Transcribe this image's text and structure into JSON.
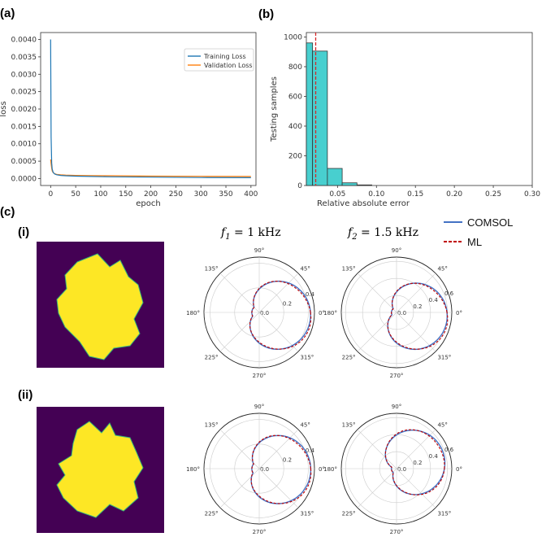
{
  "panel_labels": {
    "a": "(a)",
    "b": "(b)",
    "c": "(c)",
    "i": "(i)",
    "ii": "(ii)"
  },
  "freq_labels": {
    "f1": {
      "sym": "f",
      "sub": "1",
      "rest": " = 1 kHz"
    },
    "f2": {
      "sym": "f",
      "sub": "2",
      "rest": " = 1.5 kHz"
    }
  },
  "polar_legend": {
    "comsol": "COMSOL",
    "ml": "ML"
  },
  "colors": {
    "training": "#1f77b4",
    "validation": "#ff7f0e",
    "hist_fill": "#48cfcf",
    "hist_edge": "#333333",
    "mean_line": "#d62728",
    "comsol": "#4472c4",
    "ml": "#c00000",
    "shape_bg": "#440154",
    "shape_fg": "#fde725"
  },
  "chart_data": [
    {
      "type": "line",
      "xlabel": "epoch",
      "ylabel": "loss",
      "xlim": [
        -20,
        410
      ],
      "ylim": [
        -0.0002,
        0.0042
      ],
      "xticks": [
        "0",
        "50",
        "100",
        "150",
        "200",
        "250",
        "300",
        "350",
        "400"
      ],
      "yticks": [
        "0.0000",
        "0.0005",
        "0.0010",
        "0.0015",
        "0.0020",
        "0.0025",
        "0.0030",
        "0.0035",
        "0.0040"
      ],
      "legend": "top-right",
      "series": [
        {
          "name": "Training Loss",
          "x": [
            0,
            1,
            2,
            3,
            5,
            8,
            12,
            20,
            30,
            50,
            80,
            120,
            200,
            300,
            400
          ],
          "y": [
            0.004,
            0.0012,
            0.00045,
            0.00028,
            0.00018,
            0.00013,
            0.00011,
            9e-05,
            8e-05,
            7e-05,
            6e-05,
            5e-05,
            4e-05,
            3e-05,
            2.5e-05
          ]
        },
        {
          "name": "Validation Loss",
          "x": [
            0,
            1,
            2,
            3,
            5,
            8,
            12,
            20,
            30,
            50,
            80,
            120,
            200,
            300,
            400
          ],
          "y": [
            0.00055,
            0.00042,
            0.0003,
            0.00022,
            0.00017,
            0.00014,
            0.00012,
            0.00011,
            0.0001,
            9e-05,
            8.5e-05,
            8e-05,
            7e-05,
            6.5e-05,
            6e-05
          ]
        }
      ]
    },
    {
      "type": "bar",
      "xlabel": "Relative absolute error",
      "ylabel": "Testing samples",
      "xlim": [
        0.01,
        0.3
      ],
      "ylim": [
        0,
        1030
      ],
      "xticks": [
        "0.05",
        "0.10",
        "0.15",
        "0.20",
        "0.25",
        "0.30"
      ],
      "yticks": [
        "0",
        "200",
        "400",
        "600",
        "800",
        "1000"
      ],
      "bin_edges": [
        0.01,
        0.018,
        0.037,
        0.056,
        0.075,
        0.094
      ],
      "values": [
        960,
        905,
        115,
        18,
        4
      ],
      "mean_line_x": 0.022
    },
    {
      "type": "polar",
      "angle_labels": [
        "0°",
        "45°",
        "90°",
        "135°",
        "180°",
        "225°",
        "270°",
        "315°"
      ],
      "radial_ticks": [
        "0.0",
        "0.2",
        "0.4"
      ],
      "rmax": 0.45,
      "series": [
        "COMSOL",
        "ML"
      ]
    },
    {
      "type": "polar",
      "angle_labels": [
        "0°",
        "45°",
        "90°",
        "135°",
        "180°",
        "225°",
        "270°",
        "315°"
      ],
      "radial_ticks": [
        "0.0",
        "0.2",
        "0.4",
        "0.6"
      ],
      "rmax": 0.65,
      "series": [
        "COMSOL",
        "ML"
      ]
    },
    {
      "type": "polar",
      "angle_labels": [
        "0°",
        "45°",
        "90°",
        "135°",
        "180°",
        "225°",
        "270°",
        "315°"
      ],
      "radial_ticks": [
        "0.0",
        "0.2",
        "0.4"
      ],
      "rmax": 0.45,
      "series": [
        "COMSOL",
        "ML"
      ]
    },
    {
      "type": "polar",
      "angle_labels": [
        "0°",
        "45°",
        "90°",
        "135°",
        "180°",
        "225°",
        "270°",
        "315°"
      ],
      "radial_ticks": [
        "0.0",
        "0.2",
        "0.4",
        "0.6"
      ],
      "rmax": 0.65,
      "series": [
        "COMSOL",
        "ML"
      ]
    }
  ]
}
